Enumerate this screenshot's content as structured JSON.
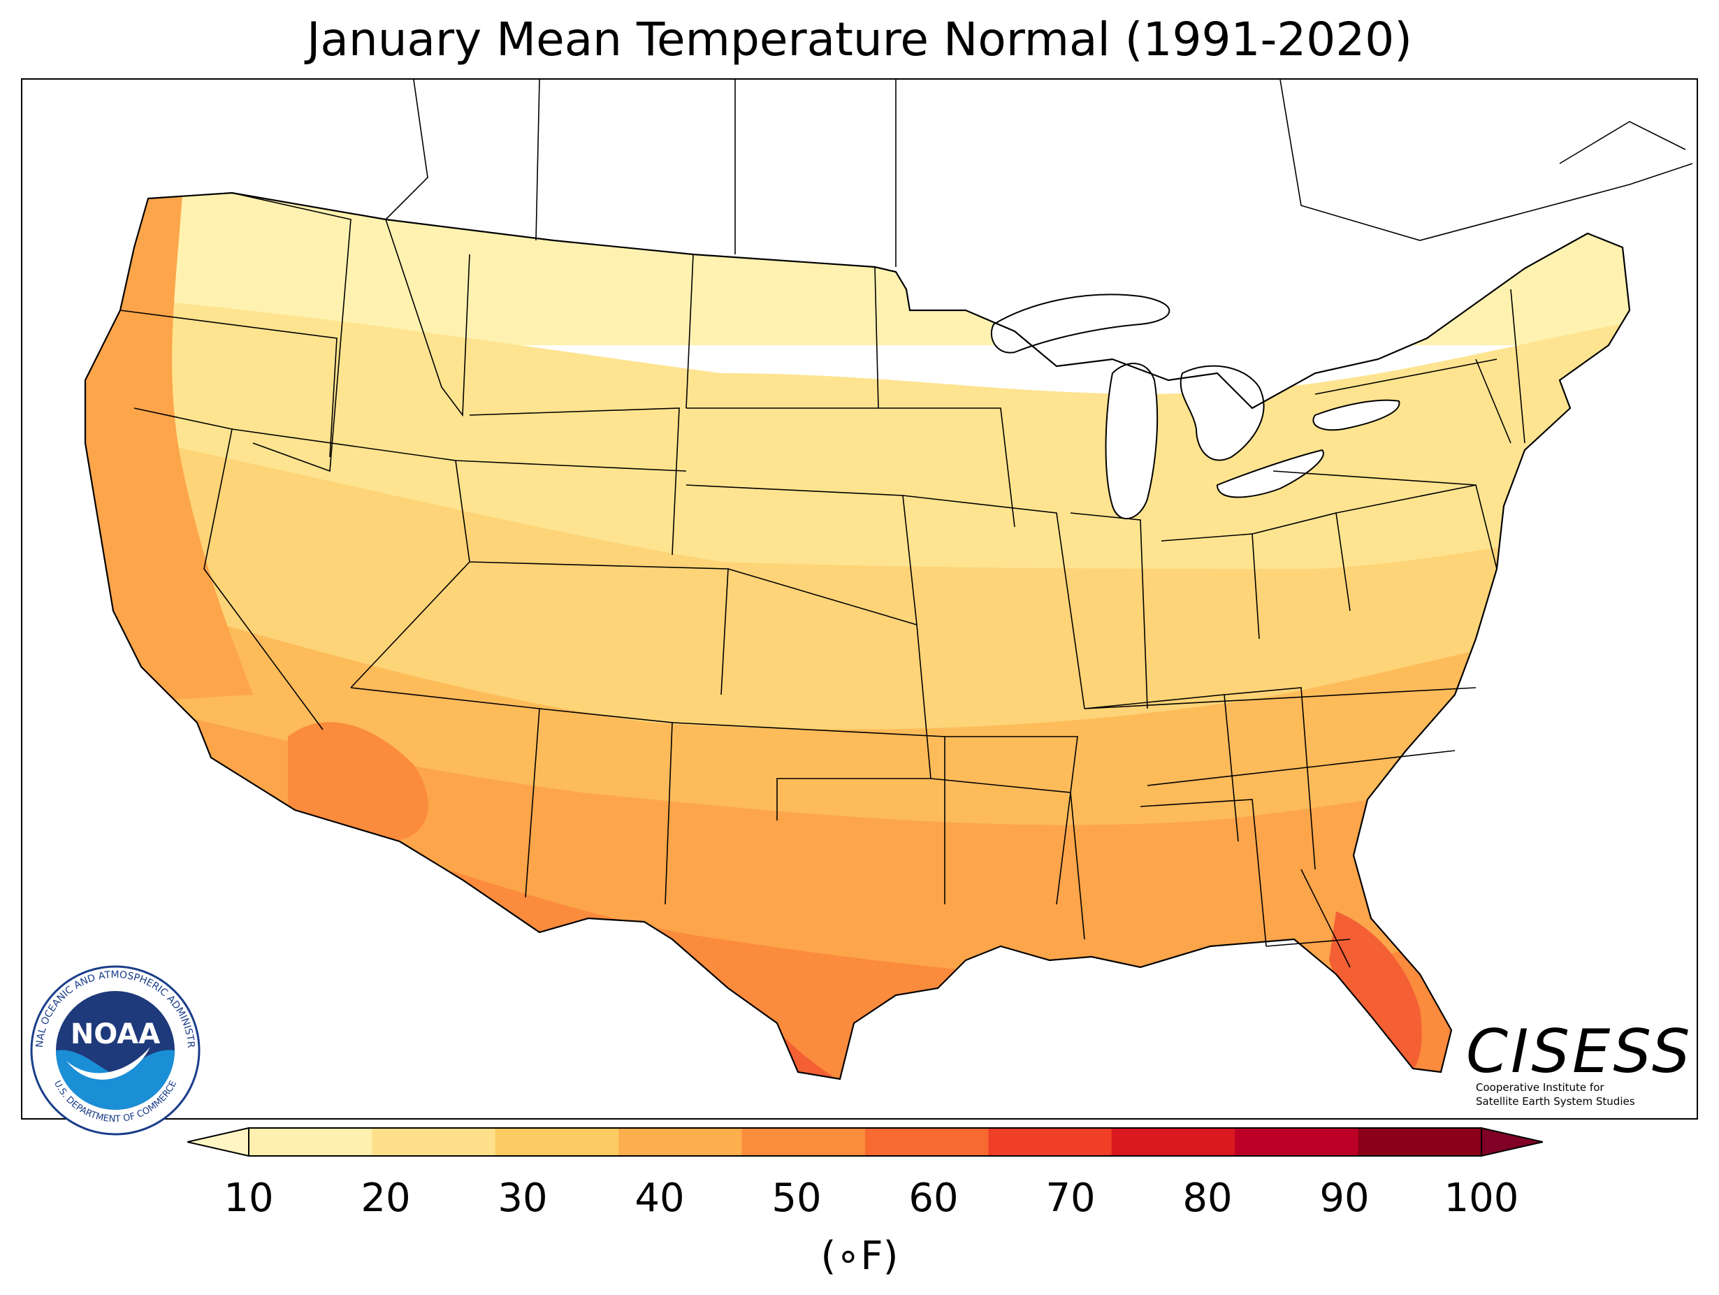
{
  "title": "January Mean Temperature Normal (1991-2020)",
  "colorbar": {
    "ticks": [
      "10",
      "20",
      "30",
      "40",
      "50",
      "60",
      "70",
      "80",
      "90",
      "100"
    ],
    "units": "(∘F)",
    "colors": [
      "#fff0b0",
      "#fee08a",
      "#fdcb64",
      "#fdae4d",
      "#fc8d3c",
      "#f86a30",
      "#ef3f27",
      "#d9181f",
      "#bd0026",
      "#8b0018"
    ],
    "under_color": "#fff5c4",
    "over_color": "#800026"
  },
  "map": {
    "region": "contiguous United States",
    "colors": {
      "north": "#fff2b0",
      "north_central": "#fee490",
      "central": "#fdd477",
      "south_central": "#fdbb5a",
      "south": "#fca54a",
      "gulf": "#fb8b3d",
      "warmest": "#f45f34",
      "lakes": "#ffffff",
      "boundary": "#000000"
    }
  },
  "logos": {
    "noaa": {
      "emblem": "NOAA",
      "ring_text": "NATIONAL OCEANIC AND ATMOSPHERIC ADMINISTRATION",
      "department": "U.S. DEPARTMENT OF COMMERCE"
    },
    "cisess": {
      "name": "CISESS",
      "line1": "Cooperative Institute for",
      "line2": "Satellite Earth System Studies"
    }
  }
}
